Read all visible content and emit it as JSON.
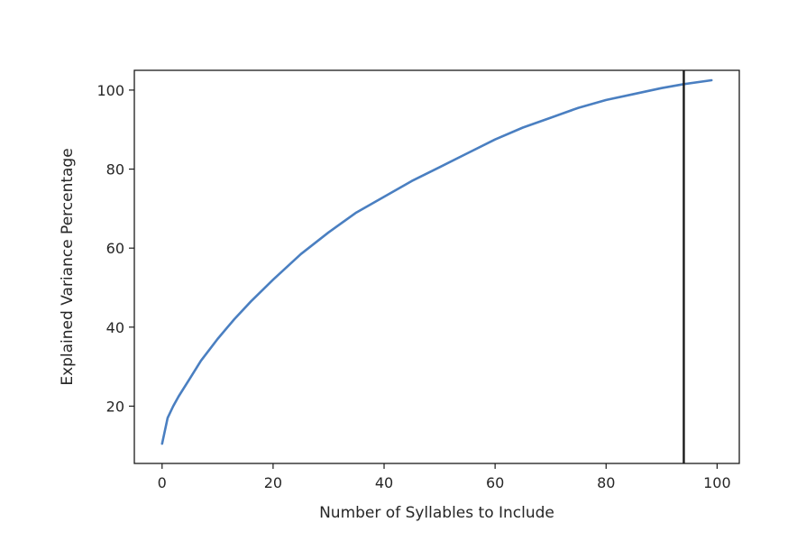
{
  "chart_data": {
    "type": "line",
    "title": "",
    "xlabel": "Number of Syllables to Include",
    "ylabel": "Explained Variance Percentage",
    "xlim": [
      -5,
      104
    ],
    "ylim": [
      5.5,
      105
    ],
    "xticks": [
      0,
      20,
      40,
      60,
      80,
      100
    ],
    "yticks": [
      20,
      40,
      60,
      80,
      100
    ],
    "xtick_labels": [
      "0",
      "20",
      "40",
      "60",
      "80",
      "100"
    ],
    "ytick_labels": [
      "20",
      "40",
      "60",
      "80",
      "100"
    ],
    "grid": false,
    "series": [
      {
        "color": "#4a7fc1",
        "x": [
          0,
          1,
          2,
          3,
          5,
          7,
          10,
          13,
          16,
          20,
          25,
          30,
          35,
          40,
          45,
          50,
          55,
          60,
          65,
          70,
          75,
          80,
          85,
          90,
          94,
          99
        ],
        "y": [
          10.5,
          17,
          20,
          22.5,
          27,
          31.5,
          37,
          42,
          46.5,
          52,
          58.5,
          64,
          69,
          73,
          77,
          80.5,
          84,
          87.5,
          90.5,
          93,
          95.5,
          97.5,
          99,
          100.5,
          101.5,
          102.5
        ]
      }
    ],
    "vlines": [
      {
        "x": 94,
        "color": "#1a1a1a"
      }
    ]
  }
}
